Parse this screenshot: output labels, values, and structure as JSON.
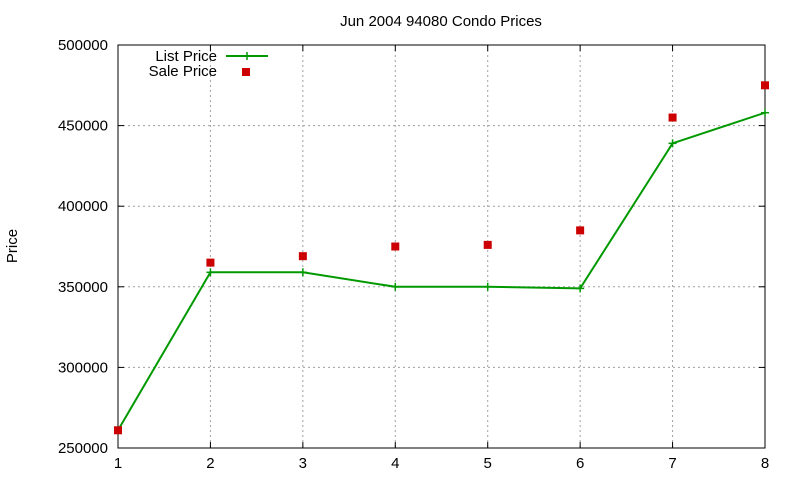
{
  "chart_data": {
    "type": "line",
    "title": "Jun 2004 94080 Condo Prices",
    "xlabel": "",
    "ylabel": "Price",
    "x": [
      1,
      2,
      3,
      4,
      5,
      6,
      7,
      8
    ],
    "xlim": [
      1,
      8
    ],
    "ylim": [
      250000,
      500000
    ],
    "xticks": [
      "1",
      "2",
      "3",
      "4",
      "5",
      "6",
      "7",
      "8"
    ],
    "yticks": [
      "250000",
      "300000",
      "350000",
      "400000",
      "450000",
      "500000"
    ],
    "grid": true,
    "legend_position": "top-left",
    "series": [
      {
        "name": "List Price",
        "style": "line+cross",
        "color": "#009900",
        "values": [
          261000,
          359000,
          359000,
          350000,
          350000,
          349000,
          439000,
          458000
        ]
      },
      {
        "name": "Sale Price",
        "style": "square-markers",
        "color": "#cc0000",
        "values": [
          261000,
          365000,
          369000,
          375000,
          376000,
          385000,
          455000,
          475000
        ]
      }
    ]
  }
}
